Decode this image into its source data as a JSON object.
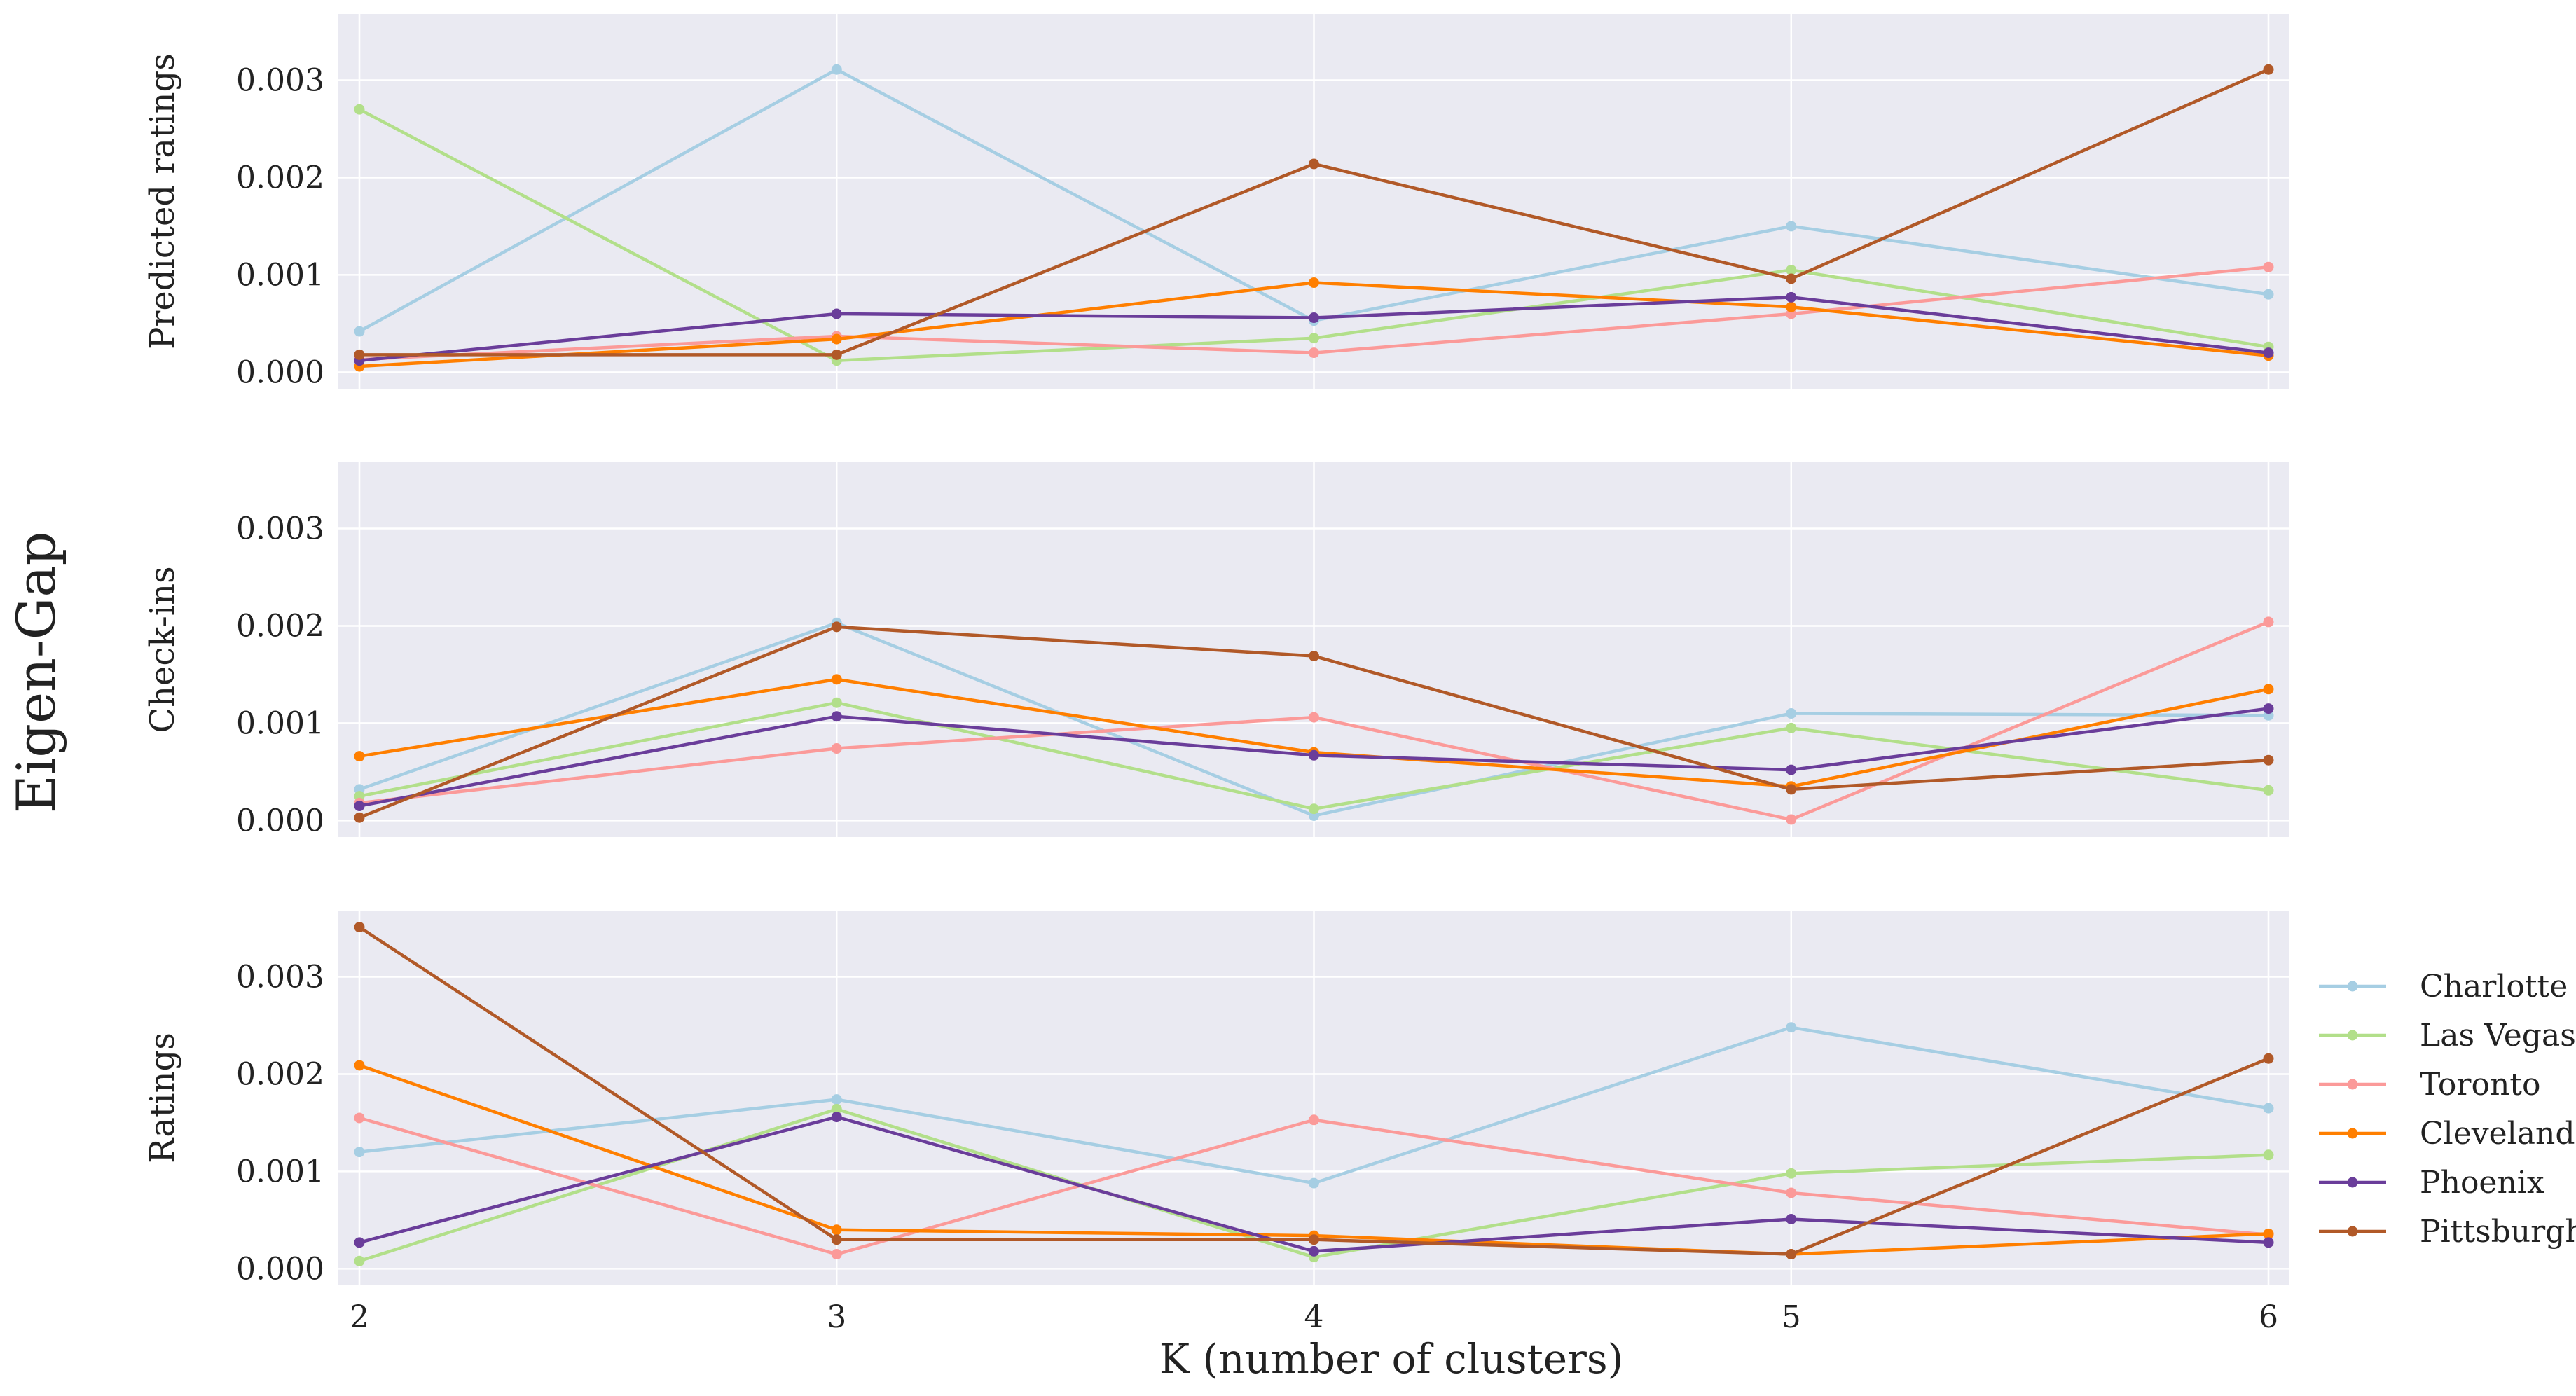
{
  "figure": {
    "super_ylabel": "Eigen-Gap",
    "xlabel": "K (number of clusters)"
  },
  "chart_data": [
    {
      "type": "line",
      "title": "",
      "ylabel": "Predicted ratings",
      "xlabel": "K (number of clusters)",
      "x": [
        2,
        3,
        4,
        5,
        6
      ],
      "x_tick_labels": [
        "2",
        "3",
        "4",
        "5",
        "6"
      ],
      "y_ticks": [
        0.0,
        0.001,
        0.002,
        0.003
      ],
      "y_tick_labels": [
        "0.000",
        "0.001",
        "0.002",
        "0.003"
      ],
      "ylim": [
        -0.00017,
        0.00368
      ],
      "grid": true,
      "series": [
        {
          "name": "Charlotte",
          "color": "#a6cee3",
          "values": [
            0.00042,
            0.00311,
            0.00053,
            0.0015,
            0.0008
          ]
        },
        {
          "name": "Las Vegas",
          "color": "#b2df8a",
          "values": [
            0.0027,
            0.00012,
            0.00035,
            0.00105,
            0.00026
          ]
        },
        {
          "name": "Toronto",
          "color": "#fb9a99",
          "values": [
            0.00013,
            0.00037,
            0.0002,
            0.0006,
            0.00108
          ]
        },
        {
          "name": "Cleveland",
          "color": "#ff7f00",
          "values": [
            6e-05,
            0.00034,
            0.00092,
            0.00067,
            0.00017
          ]
        },
        {
          "name": "Phoenix",
          "color": "#6a3d9a",
          "values": [
            0.00012,
            0.0006,
            0.00056,
            0.00077,
            0.0002
          ]
        },
        {
          "name": "Pittsburgh",
          "color": "#b15928",
          "values": [
            0.00018,
            0.00018,
            0.00214,
            0.00096,
            0.00311
          ]
        }
      ]
    },
    {
      "type": "line",
      "title": "",
      "ylabel": "Check-ins",
      "xlabel": "K (number of clusters)",
      "x": [
        2,
        3,
        4,
        5,
        6
      ],
      "x_tick_labels": [
        "2",
        "3",
        "4",
        "5",
        "6"
      ],
      "y_ticks": [
        0.0,
        0.001,
        0.002,
        0.003
      ],
      "y_tick_labels": [
        "0.000",
        "0.001",
        "0.002",
        "0.003"
      ],
      "ylim": [
        -0.00017,
        0.00368
      ],
      "grid": true,
      "series": [
        {
          "name": "Charlotte",
          "color": "#a6cee3",
          "values": [
            0.00032,
            0.00203,
            5e-05,
            0.0011,
            0.00108
          ]
        },
        {
          "name": "Las Vegas",
          "color": "#b2df8a",
          "values": [
            0.00025,
            0.00121,
            0.00012,
            0.00095,
            0.00031
          ]
        },
        {
          "name": "Toronto",
          "color": "#fb9a99",
          "values": [
            0.00018,
            0.00074,
            0.00106,
            1e-05,
            0.00204
          ]
        },
        {
          "name": "Cleveland",
          "color": "#ff7f00",
          "values": [
            0.00066,
            0.00145,
            0.0007,
            0.00035,
            0.00135
          ]
        },
        {
          "name": "Phoenix",
          "color": "#6a3d9a",
          "values": [
            0.00015,
            0.00107,
            0.00067,
            0.00052,
            0.00115
          ]
        },
        {
          "name": "Pittsburgh",
          "color": "#b15928",
          "values": [
            3e-05,
            0.00199,
            0.00169,
            0.00032,
            0.00062
          ]
        }
      ]
    },
    {
      "type": "line",
      "title": "",
      "ylabel": "Ratings",
      "xlabel": "K (number of clusters)",
      "x": [
        2,
        3,
        4,
        5,
        6
      ],
      "x_tick_labels": [
        "2",
        "3",
        "4",
        "5",
        "6"
      ],
      "y_ticks": [
        0.0,
        0.001,
        0.002,
        0.003
      ],
      "y_tick_labels": [
        "0.000",
        "0.001",
        "0.002",
        "0.003"
      ],
      "ylim": [
        -0.00017,
        0.00368
      ],
      "grid": true,
      "legend_position": "right",
      "series": [
        {
          "name": "Charlotte",
          "color": "#a6cee3",
          "values": [
            0.0012,
            0.00174,
            0.00088,
            0.00248,
            0.00165
          ]
        },
        {
          "name": "Las Vegas",
          "color": "#b2df8a",
          "values": [
            8e-05,
            0.00164,
            0.00012,
            0.00098,
            0.00117
          ]
        },
        {
          "name": "Toronto",
          "color": "#fb9a99",
          "values": [
            0.00155,
            0.00015,
            0.00153,
            0.00078,
            0.00035
          ]
        },
        {
          "name": "Cleveland",
          "color": "#ff7f00",
          "values": [
            0.00209,
            0.0004,
            0.00034,
            0.00015,
            0.00036
          ]
        },
        {
          "name": "Phoenix",
          "color": "#6a3d9a",
          "values": [
            0.00027,
            0.00156,
            0.00018,
            0.00051,
            0.00027
          ]
        },
        {
          "name": "Pittsburgh",
          "color": "#b15928",
          "values": [
            0.00351,
            0.0003,
            0.0003,
            0.00015,
            0.00216
          ]
        }
      ]
    }
  ],
  "legend": {
    "position": "right",
    "entries": [
      {
        "label": "Charlotte",
        "color": "#a6cee3"
      },
      {
        "label": "Las Vegas",
        "color": "#b2df8a"
      },
      {
        "label": "Toronto",
        "color": "#fb9a99"
      },
      {
        "label": "Cleveland",
        "color": "#ff7f00"
      },
      {
        "label": "Phoenix",
        "color": "#6a3d9a"
      },
      {
        "label": "Pittsburgh",
        "color": "#b15928"
      }
    ]
  },
  "colors": {
    "panel_background": "#eaeaf2",
    "grid": "#ffffff"
  }
}
